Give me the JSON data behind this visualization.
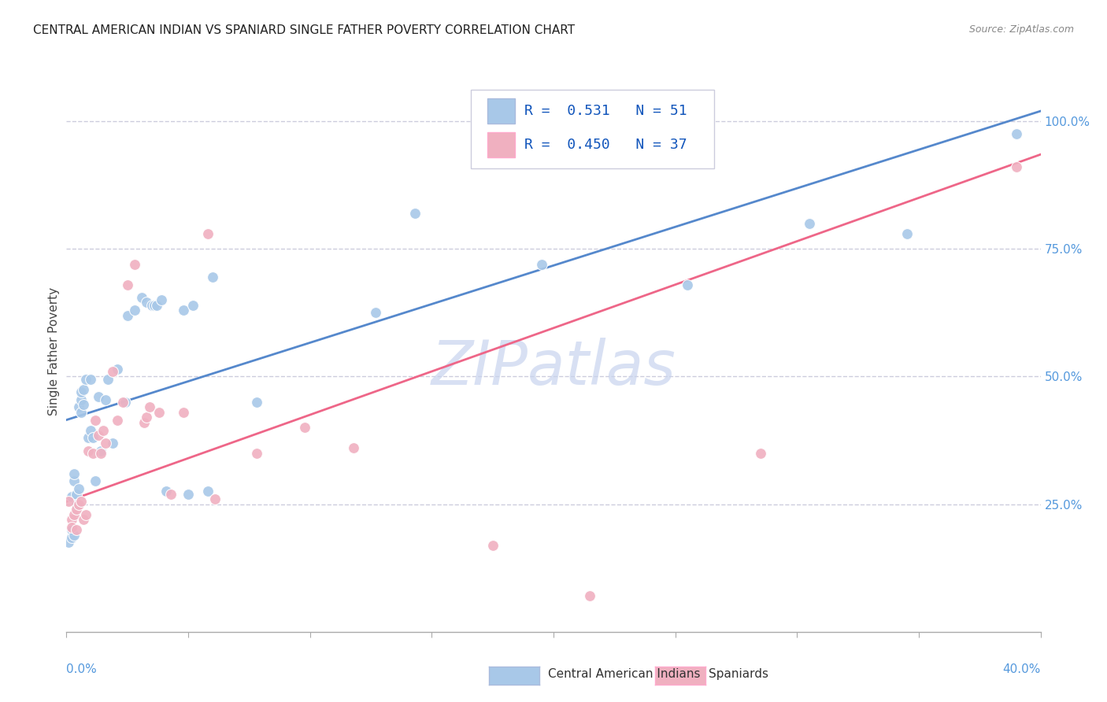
{
  "title": "CENTRAL AMERICAN INDIAN VS SPANIARD SINGLE FATHER POVERTY CORRELATION CHART",
  "source": "Source: ZipAtlas.com",
  "ylabel": "Single Father Poverty",
  "watermark": "ZIPatlas",
  "legend_blue_r": "R =  0.531",
  "legend_blue_n": "N = 51",
  "legend_pink_r": "R =  0.450",
  "legend_pink_n": "N = 37",
  "blue_points": [
    [
      0.001,
      0.175
    ],
    [
      0.002,
      0.185
    ],
    [
      0.002,
      0.2
    ],
    [
      0.003,
      0.19
    ],
    [
      0.002,
      0.265
    ],
    [
      0.003,
      0.295
    ],
    [
      0.003,
      0.31
    ],
    [
      0.004,
      0.27
    ],
    [
      0.004,
      0.25
    ],
    [
      0.005,
      0.28
    ],
    [
      0.005,
      0.44
    ],
    [
      0.006,
      0.455
    ],
    [
      0.006,
      0.47
    ],
    [
      0.006,
      0.43
    ],
    [
      0.007,
      0.475
    ],
    [
      0.007,
      0.445
    ],
    [
      0.008,
      0.495
    ],
    [
      0.009,
      0.38
    ],
    [
      0.01,
      0.395
    ],
    [
      0.01,
      0.495
    ],
    [
      0.011,
      0.38
    ],
    [
      0.012,
      0.295
    ],
    [
      0.013,
      0.46
    ],
    [
      0.014,
      0.355
    ],
    [
      0.016,
      0.455
    ],
    [
      0.017,
      0.495
    ],
    [
      0.019,
      0.37
    ],
    [
      0.021,
      0.515
    ],
    [
      0.024,
      0.45
    ],
    [
      0.025,
      0.62
    ],
    [
      0.028,
      0.63
    ],
    [
      0.031,
      0.655
    ],
    [
      0.033,
      0.645
    ],
    [
      0.035,
      0.64
    ],
    [
      0.036,
      0.64
    ],
    [
      0.037,
      0.64
    ],
    [
      0.039,
      0.65
    ],
    [
      0.041,
      0.275
    ],
    [
      0.048,
      0.63
    ],
    [
      0.05,
      0.27
    ],
    [
      0.052,
      0.64
    ],
    [
      0.058,
      0.275
    ],
    [
      0.06,
      0.695
    ],
    [
      0.078,
      0.45
    ],
    [
      0.127,
      0.625
    ],
    [
      0.143,
      0.82
    ],
    [
      0.195,
      0.72
    ],
    [
      0.255,
      0.68
    ],
    [
      0.305,
      0.8
    ],
    [
      0.345,
      0.78
    ],
    [
      0.39,
      0.975
    ]
  ],
  "pink_points": [
    [
      0.001,
      0.255
    ],
    [
      0.002,
      0.22
    ],
    [
      0.002,
      0.205
    ],
    [
      0.003,
      0.23
    ],
    [
      0.004,
      0.2
    ],
    [
      0.004,
      0.24
    ],
    [
      0.005,
      0.25
    ],
    [
      0.006,
      0.255
    ],
    [
      0.007,
      0.22
    ],
    [
      0.008,
      0.23
    ],
    [
      0.009,
      0.355
    ],
    [
      0.011,
      0.35
    ],
    [
      0.012,
      0.415
    ],
    [
      0.013,
      0.385
    ],
    [
      0.014,
      0.35
    ],
    [
      0.015,
      0.395
    ],
    [
      0.016,
      0.37
    ],
    [
      0.019,
      0.51
    ],
    [
      0.021,
      0.415
    ],
    [
      0.023,
      0.45
    ],
    [
      0.025,
      0.68
    ],
    [
      0.028,
      0.72
    ],
    [
      0.032,
      0.41
    ],
    [
      0.033,
      0.42
    ],
    [
      0.034,
      0.44
    ],
    [
      0.038,
      0.43
    ],
    [
      0.043,
      0.27
    ],
    [
      0.048,
      0.43
    ],
    [
      0.058,
      0.78
    ],
    [
      0.061,
      0.26
    ],
    [
      0.078,
      0.35
    ],
    [
      0.098,
      0.4
    ],
    [
      0.118,
      0.36
    ],
    [
      0.175,
      0.17
    ],
    [
      0.215,
      0.07
    ],
    [
      0.285,
      0.35
    ],
    [
      0.39,
      0.91
    ]
  ],
  "blue_line_x": [
    0.0,
    0.4
  ],
  "blue_line_y": [
    0.415,
    1.02
  ],
  "pink_line_x": [
    0.0,
    0.4
  ],
  "pink_line_y": [
    0.255,
    0.935
  ],
  "xlim": [
    0.0,
    0.4
  ],
  "ylim": [
    0.0,
    1.1
  ],
  "blue_color": "#A8C8E8",
  "pink_color": "#F0B0C0",
  "blue_line_color": "#5588CC",
  "pink_line_color": "#EE6688",
  "title_color": "#222222",
  "axis_tick_color": "#5599DD",
  "grid_color": "#CCCCDD",
  "background_color": "#FFFFFF",
  "watermark_color": "#C8D4EE",
  "legend_text_color": "#1155BB"
}
